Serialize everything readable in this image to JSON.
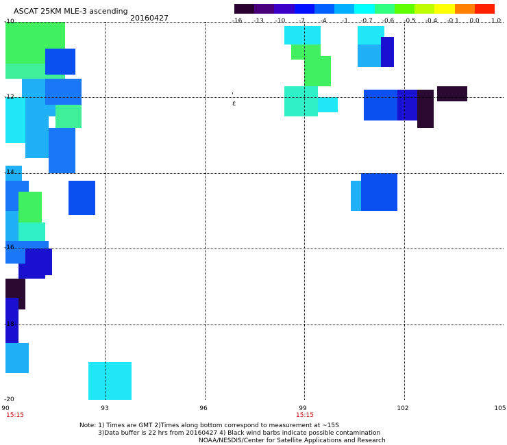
{
  "header": {
    "title": "ASCAT 25KM MLE-3 ascending",
    "date": "20160427"
  },
  "colorbar": {
    "labels": [
      "-16",
      "-13",
      "-10",
      "-7",
      "-4",
      "-1",
      "-0.7",
      "-0.6",
      "-0.5",
      "-0.4",
      "-0.1",
      "0.0",
      "1.0"
    ],
    "colors": [
      "#2a0030",
      "#4a007a",
      "#3b00c8",
      "#0010ff",
      "#0060ff",
      "#00b0ff",
      "#00ffff",
      "#30ff80",
      "#60ff00",
      "#c0ff00",
      "#ffff00",
      "#ff8000",
      "#ff2000"
    ]
  },
  "axes": {
    "lat_labels": [
      "-10",
      "-12",
      "-14",
      "-16",
      "-18",
      "-20"
    ],
    "lon_labels": [
      "90",
      "93",
      "96",
      "99",
      "102",
      "105"
    ],
    "time_labels": [
      "15:15",
      "15:15"
    ]
  },
  "footer": {
    "line1": "Note: 1) Times are GMT 2)Times along bottom correspond to measurement at ~15S",
    "line2": "3)Data buffer is 22 hrs from 20160427 4) Black wind barbs indicate possible contamination",
    "line3": "NOAA/NESDIS/Center for Satellite Applications and Research"
  },
  "map_data": {
    "lon_range": [
      90,
      105
    ],
    "lat_range": [
      -20,
      -10
    ],
    "value_colors": {
      "deep": "#2a0a30",
      "navy": "#1a10d0",
      "blue": "#0a50f0",
      "mid": "#1a78f8",
      "sky": "#20b0f8",
      "cyan": "#20e8f8",
      "aqua": "#30f0c8",
      "seafoam": "#40f098",
      "green": "#40f060"
    },
    "cells": [
      {
        "lon": [
          90,
          91.8
        ],
        "lat": [
          -10,
          -11.1
        ],
        "c": "green"
      },
      {
        "lon": [
          90,
          91.8
        ],
        "lat": [
          -11.1,
          -11.5
        ],
        "c": "seafoam"
      },
      {
        "lon": [
          91.2,
          92.1
        ],
        "lat": [
          -10.7,
          -11.4
        ],
        "c": "blue"
      },
      {
        "lon": [
          90.5,
          91.5
        ],
        "lat": [
          -11.5,
          -12.5
        ],
        "c": "sky"
      },
      {
        "lon": [
          91.2,
          92.3
        ],
        "lat": [
          -11.5,
          -12.2
        ],
        "c": "mid"
      },
      {
        "lon": [
          91.5,
          92.3
        ],
        "lat": [
          -12.2,
          -12.8
        ],
        "c": "seafoam"
      },
      {
        "lon": [
          90,
          90.6
        ],
        "lat": [
          -12,
          -13.2
        ],
        "c": "cyan"
      },
      {
        "lon": [
          90.6,
          91.3
        ],
        "lat": [
          -12.3,
          -13.6
        ],
        "c": "sky"
      },
      {
        "lon": [
          91.3,
          92.1
        ],
        "lat": [
          -12.8,
          -14.0
        ],
        "c": "mid"
      },
      {
        "lon": [
          90,
          90.5
        ],
        "lat": [
          -13.8,
          -14.2
        ],
        "c": "sky"
      },
      {
        "lon": [
          90,
          90.7
        ],
        "lat": [
          -14.2,
          -15.0
        ],
        "c": "mid"
      },
      {
        "lon": [
          90.4,
          91.1
        ],
        "lat": [
          -14.5,
          -15.3
        ],
        "c": "green"
      },
      {
        "lon": [
          90,
          90.4
        ],
        "lat": [
          -15.0,
          -15.8
        ],
        "c": "sky"
      },
      {
        "lon": [
          90.4,
          91.2
        ],
        "lat": [
          -15.3,
          -16.0
        ],
        "c": "aqua"
      },
      {
        "lon": [
          90,
          91.3
        ],
        "lat": [
          -15.8,
          -16.4
        ],
        "c": "mid"
      },
      {
        "lon": [
          90.6,
          91.4
        ],
        "lat": [
          -16.0,
          -16.7
        ],
        "c": "navy"
      },
      {
        "lon": [
          90.4,
          91.2
        ],
        "lat": [
          -16.4,
          -16.8
        ],
        "c": "navy"
      },
      {
        "lon": [
          90,
          90.6
        ],
        "lat": [
          -16.8,
          -17.6
        ],
        "c": "deep"
      },
      {
        "lon": [
          90,
          90.4
        ],
        "lat": [
          -17.3,
          -18.5
        ],
        "c": "navy"
      },
      {
        "lon": [
          90,
          90.7
        ],
        "lat": [
          -18.5,
          -19.3
        ],
        "c": "sky"
      },
      {
        "lon": [
          91.9,
          92.7
        ],
        "lat": [
          -14.2,
          -15.1
        ],
        "c": "blue"
      },
      {
        "lon": [
          92.5,
          93.8
        ],
        "lat": [
          -19.0,
          -20.0
        ],
        "c": "cyan"
      },
      {
        "lon": [
          98.4,
          99.5
        ],
        "lat": [
          -10.1,
          -10.6
        ],
        "c": "cyan"
      },
      {
        "lon": [
          98.6,
          99.5
        ],
        "lat": [
          -10.6,
          -11.0
        ],
        "c": "green"
      },
      {
        "lon": [
          99.0,
          99.8
        ],
        "lat": [
          -10.9,
          -11.7
        ],
        "c": "green"
      },
      {
        "lon": [
          98.4,
          99.4
        ],
        "lat": [
          -11.7,
          -12.5
        ],
        "c": "aqua"
      },
      {
        "lon": [
          99.4,
          100.0
        ],
        "lat": [
          -12.0,
          -12.4
        ],
        "c": "cyan"
      },
      {
        "lon": [
          100.6,
          101.4
        ],
        "lat": [
          -10.1,
          -10.6
        ],
        "c": "cyan"
      },
      {
        "lon": [
          100.6,
          101.5
        ],
        "lat": [
          -10.6,
          -11.2
        ],
        "c": "sky"
      },
      {
        "lon": [
          101.3,
          101.7
        ],
        "lat": [
          -10.4,
          -11.2
        ],
        "c": "navy"
      },
      {
        "lon": [
          100.8,
          101.8
        ],
        "lat": [
          -11.8,
          -12.6
        ],
        "c": "blue"
      },
      {
        "lon": [
          101.8,
          102.4
        ],
        "lat": [
          -11.8,
          -12.6
        ],
        "c": "navy"
      },
      {
        "lon": [
          102.4,
          102.9
        ],
        "lat": [
          -11.8,
          -12.8
        ],
        "c": "deep"
      },
      {
        "lon": [
          103.0,
          103.9
        ],
        "lat": [
          -11.7,
          -12.1
        ],
        "c": "deep"
      },
      {
        "lon": [
          100.4,
          101.0
        ],
        "lat": [
          -14.2,
          -15.0
        ],
        "c": "sky"
      },
      {
        "lon": [
          100.7,
          101.8
        ],
        "lat": [
          -14.0,
          -15.0
        ],
        "c": "blue"
      }
    ]
  }
}
